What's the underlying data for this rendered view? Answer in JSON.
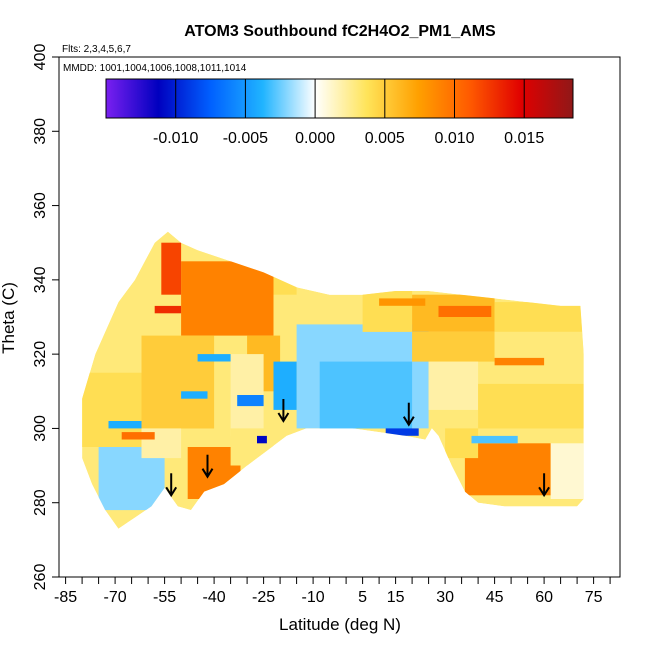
{
  "chart_data": {
    "type": "heatmap",
    "title": "ATOM3 Southbound fC2H4O2_PM1_AMS",
    "subtitle_flights": "Flts: 2,3,4,5,6,7",
    "subtitle_dates": "MMDD: 1001,1004,1006,1008,1011,1014",
    "xlabel": "Latitude (deg N)",
    "ylabel": "Theta (C)",
    "xlim": [
      -87,
      83
    ],
    "ylim": [
      260,
      400
    ],
    "x_ticks": [
      -85,
      -70,
      -55,
      -40,
      -25,
      -10,
      5,
      15,
      30,
      45,
      60,
      75
    ],
    "x_minor_ticks": [
      -80,
      -75,
      -65,
      -60,
      -50,
      -45,
      -35,
      -30,
      -20,
      -15,
      -5,
      0,
      10,
      20,
      25,
      35,
      40,
      50,
      55,
      65,
      70,
      80
    ],
    "y_ticks": [
      260,
      280,
      300,
      320,
      340,
      360,
      380,
      400
    ],
    "colorbar": {
      "range": [
        -0.015,
        0.0185
      ],
      "ticks": [
        -0.01,
        -0.005,
        0.0,
        0.005,
        0.01,
        0.015
      ],
      "tick_labels": [
        "-0.010",
        "-0.005",
        "0.000",
        "0.005",
        "0.010",
        "0.015"
      ],
      "colors": [
        "#7a20f0",
        "#0000bf",
        "#0060ff",
        "#20b4ff",
        "#ffffff",
        "#ffe45a",
        "#ffa000",
        "#ff5a00",
        "#e00000",
        "#901818"
      ]
    },
    "arrows": [
      {
        "lat": -53,
        "theta": 282
      },
      {
        "lat": -42,
        "theta": 287
      },
      {
        "lat": -19,
        "theta": 302
      },
      {
        "lat": 19,
        "theta": 301
      },
      {
        "lat": 60,
        "theta": 282
      }
    ],
    "coverage": {
      "bottom_boundary": [
        [
          -80,
          292
        ],
        [
          -77,
          285
        ],
        [
          -73,
          278
        ],
        [
          -69,
          273
        ],
        [
          -64,
          276
        ],
        [
          -59,
          279
        ],
        [
          -55,
          284
        ],
        [
          -51,
          279
        ],
        [
          -47,
          278
        ],
        [
          -43,
          283
        ],
        [
          -37,
          285
        ],
        [
          -30,
          290
        ],
        [
          -24,
          294
        ],
        [
          -18,
          298
        ],
        [
          -12,
          300
        ],
        [
          -5,
          300
        ],
        [
          2,
          300
        ],
        [
          10,
          299
        ],
        [
          18,
          298
        ],
        [
          24,
          297
        ],
        [
          26,
          300
        ],
        [
          28,
          298
        ],
        [
          32,
          290
        ],
        [
          36,
          283
        ],
        [
          40,
          280
        ],
        [
          48,
          279
        ],
        [
          56,
          279
        ],
        [
          64,
          279
        ],
        [
          70,
          279
        ],
        [
          72,
          281
        ]
      ],
      "top_boundary": [
        [
          -80,
          308
        ],
        [
          -76,
          320
        ],
        [
          -72,
          328
        ],
        [
          -69,
          334
        ],
        [
          -64,
          340
        ],
        [
          -61,
          345
        ],
        [
          -58,
          350
        ],
        [
          -54,
          353
        ],
        [
          -50,
          350
        ],
        [
          -45,
          348
        ],
        [
          -35,
          345
        ],
        [
          -25,
          342
        ],
        [
          -15,
          338
        ],
        [
          -5,
          336
        ],
        [
          5,
          336
        ],
        [
          15,
          337
        ],
        [
          25,
          337
        ],
        [
          35,
          336
        ],
        [
          45,
          335
        ],
        [
          55,
          334
        ],
        [
          65,
          333
        ],
        [
          71,
          333
        ],
        [
          72,
          320
        ],
        [
          72,
          300
        ]
      ]
    },
    "patches": [
      {
        "lat": [
          -50,
          -22
        ],
        "theta": [
          325,
          345
        ],
        "value": 0.009
      },
      {
        "lat": [
          -56,
          -50
        ],
        "theta": [
          336,
          350
        ],
        "value": 0.012
      },
      {
        "lat": [
          -30,
          -20
        ],
        "theta": [
          310,
          325
        ],
        "value": 0.006
      },
      {
        "lat": [
          -22,
          -15
        ],
        "theta": [
          336,
          342
        ],
        "value": 0.004
      },
      {
        "lat": [
          -15,
          25
        ],
        "theta": [
          300,
          328
        ],
        "value": -0.002
      },
      {
        "lat": [
          -8,
          20
        ],
        "theta": [
          300,
          318
        ],
        "value": -0.003
      },
      {
        "lat": [
          -35,
          -25
        ],
        "theta": [
          298,
          320
        ],
        "value": 0.002
      },
      {
        "lat": [
          -22,
          -15
        ],
        "theta": [
          305,
          318
        ],
        "value": -0.004
      },
      {
        "lat": [
          5,
          20
        ],
        "theta": [
          326,
          337
        ],
        "value": 0.004
      },
      {
        "lat": [
          20,
          45
        ],
        "theta": [
          326,
          336
        ],
        "value": 0.006
      },
      {
        "lat": [
          45,
          72
        ],
        "theta": [
          326,
          334
        ],
        "value": 0.004
      },
      {
        "lat": [
          28,
          44
        ],
        "theta": [
          330,
          333
        ],
        "value": 0.01
      },
      {
        "lat": [
          20,
          45
        ],
        "theta": [
          318,
          326
        ],
        "value": 0.005
      },
      {
        "lat": [
          45,
          72
        ],
        "theta": [
          312,
          326
        ],
        "value": 0.003
      },
      {
        "lat": [
          25,
          40
        ],
        "theta": [
          305,
          318
        ],
        "value": 0.002
      },
      {
        "lat": [
          40,
          72
        ],
        "theta": [
          300,
          312
        ],
        "value": 0.004
      },
      {
        "lat": [
          36,
          62
        ],
        "theta": [
          282,
          296
        ],
        "value": 0.009
      },
      {
        "lat": [
          30,
          40
        ],
        "theta": [
          292,
          300
        ],
        "value": 0.004
      },
      {
        "lat": [
          62,
          72
        ],
        "theta": [
          281,
          296
        ],
        "value": 0.001
      },
      {
        "lat": [
          -80,
          -62
        ],
        "theta": [
          295,
          315
        ],
        "value": 0.004
      },
      {
        "lat": [
          -75,
          -55
        ],
        "theta": [
          278,
          295
        ],
        "value": -0.002
      },
      {
        "lat": [
          -62,
          -40
        ],
        "theta": [
          300,
          325
        ],
        "value": 0.005
      },
      {
        "lat": [
          -48,
          -32
        ],
        "theta": [
          281,
          295
        ],
        "value": 0.009
      },
      {
        "lat": [
          -35,
          -22
        ],
        "theta": [
          290,
          300
        ],
        "value": 0.003
      },
      {
        "lat": [
          -62,
          -50
        ],
        "theta": [
          292,
          300
        ],
        "value": 0.002
      }
    ],
    "streaks": [
      {
        "lat": [
          -27,
          -24
        ],
        "theta": [
          296,
          298
        ],
        "value": -0.011
      },
      {
        "lat": [
          -33,
          -25
        ],
        "theta": [
          306,
          309
        ],
        "value": -0.006
      },
      {
        "lat": [
          12,
          22
        ],
        "theta": [
          298,
          300
        ],
        "value": -0.009
      },
      {
        "lat": [
          -58,
          -50
        ],
        "theta": [
          331,
          333
        ],
        "value": 0.013
      },
      {
        "lat": [
          10,
          24
        ],
        "theta": [
          333,
          335
        ],
        "value": 0.008
      },
      {
        "lat": [
          -68,
          -58
        ],
        "theta": [
          297,
          299
        ],
        "value": 0.01
      },
      {
        "lat": [
          -50,
          -42
        ],
        "theta": [
          308,
          310
        ],
        "value": -0.004
      },
      {
        "lat": [
          38,
          52
        ],
        "theta": [
          296,
          298
        ],
        "value": -0.003
      },
      {
        "lat": [
          -45,
          -35
        ],
        "theta": [
          318,
          320
        ],
        "value": -0.004
      },
      {
        "lat": [
          45,
          60
        ],
        "theta": [
          317,
          319
        ],
        "value": 0.009
      },
      {
        "lat": [
          -72,
          -62
        ],
        "theta": [
          300,
          302
        ],
        "value": -0.004
      }
    ]
  }
}
